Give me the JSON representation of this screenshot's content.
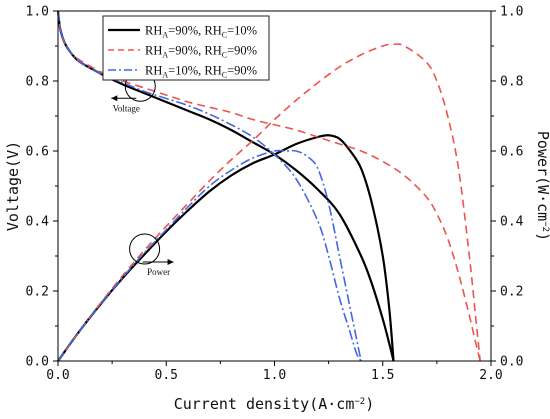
{
  "chart_data": {
    "type": "line",
    "xlabel": "Current density(A·cm⁻²)",
    "ylabel_left": "Voltage(V)",
    "ylabel_right": "Power(W·cm⁻²)",
    "xlim": [
      0,
      2.0
    ],
    "ylim_left": [
      0,
      1.0
    ],
    "ylim_right": [
      0,
      1.0
    ],
    "x_ticks": [
      "0.0",
      "0.5",
      "1.0",
      "1.5",
      "2.0"
    ],
    "y_left_ticks": [
      "0.0",
      "0.2",
      "0.4",
      "0.6",
      "0.8",
      "1.0"
    ],
    "y_right_ticks": [
      "0.0",
      "0.2",
      "0.4",
      "0.6",
      "0.8",
      "1.0"
    ],
    "grid": false,
    "legend_position": "top-left",
    "series": [
      {
        "name": "RH_A=90%, RH_C=10%",
        "legend": {
          "a": "RH",
          "a_sub": "A",
          "a_val": "=90%, ",
          "c": "RH",
          "c_sub": "C",
          "c_val": "=10%"
        },
        "color": "#000000",
        "dash": "solid",
        "voltage": {
          "x": [
            0,
            0.01,
            0.03,
            0.06,
            0.1,
            0.2,
            0.3,
            0.4,
            0.5,
            0.6,
            0.7,
            0.8,
            0.9,
            1.0,
            1.1,
            1.2,
            1.3,
            1.4,
            1.45,
            1.5,
            1.53,
            1.55
          ],
          "y": [
            1.0,
            0.95,
            0.91,
            0.88,
            0.855,
            0.82,
            0.79,
            0.765,
            0.74,
            0.715,
            0.69,
            0.66,
            0.625,
            0.59,
            0.545,
            0.49,
            0.42,
            0.3,
            0.22,
            0.12,
            0.05,
            0.0
          ]
        },
        "power": {
          "x": [
            0,
            0.1,
            0.2,
            0.3,
            0.4,
            0.5,
            0.6,
            0.7,
            0.8,
            0.9,
            1.0,
            1.1,
            1.2,
            1.25,
            1.3,
            1.35,
            1.4,
            1.45,
            1.5,
            1.53,
            1.55
          ],
          "y": [
            0,
            0.086,
            0.165,
            0.238,
            0.305,
            0.37,
            0.43,
            0.485,
            0.53,
            0.565,
            0.59,
            0.62,
            0.64,
            0.645,
            0.635,
            0.6,
            0.55,
            0.45,
            0.3,
            0.15,
            0.0
          ]
        }
      },
      {
        "name": "RH_A=90%, RH_C=90%",
        "legend": {
          "a": "RH",
          "a_sub": "A",
          "a_val": "=90%, ",
          "c": "RH",
          "c_sub": "C",
          "c_val": "=90%"
        },
        "color": "#ef5350",
        "dash": "8,5",
        "voltage": {
          "x": [
            0,
            0.01,
            0.03,
            0.06,
            0.1,
            0.2,
            0.3,
            0.4,
            0.5,
            0.6,
            0.7,
            0.8,
            0.9,
            1.0,
            1.1,
            1.2,
            1.3,
            1.4,
            1.5,
            1.6,
            1.7,
            1.75,
            1.8,
            1.85,
            1.9,
            1.93,
            1.95
          ],
          "y": [
            1.0,
            0.95,
            0.91,
            0.88,
            0.86,
            0.825,
            0.8,
            0.78,
            0.76,
            0.74,
            0.725,
            0.71,
            0.69,
            0.675,
            0.66,
            0.64,
            0.62,
            0.6,
            0.57,
            0.53,
            0.47,
            0.42,
            0.35,
            0.25,
            0.13,
            0.05,
            0.0
          ]
        },
        "power": {
          "x": [
            0,
            0.1,
            0.2,
            0.3,
            0.4,
            0.5,
            0.6,
            0.7,
            0.8,
            0.9,
            1.0,
            1.1,
            1.2,
            1.3,
            1.4,
            1.5,
            1.55,
            1.6,
            1.7,
            1.75,
            1.8,
            1.85,
            1.9,
            1.93,
            1.95
          ],
          "y": [
            0,
            0.086,
            0.168,
            0.245,
            0.317,
            0.385,
            0.45,
            0.515,
            0.575,
            0.63,
            0.69,
            0.745,
            0.795,
            0.84,
            0.875,
            0.9,
            0.905,
            0.9,
            0.855,
            0.8,
            0.7,
            0.55,
            0.3,
            0.12,
            0.0
          ]
        }
      },
      {
        "name": "RH_A=10%, RH_C=90%",
        "legend": {
          "a": "RH",
          "a_sub": "A",
          "a_val": "=10%, ",
          "c": "RH",
          "c_sub": "C",
          "c_val": "=90%"
        },
        "color": "#4169e1",
        "dash": "10,3,2,3",
        "voltage": {
          "x": [
            0,
            0.01,
            0.03,
            0.06,
            0.1,
            0.2,
            0.3,
            0.4,
            0.5,
            0.6,
            0.7,
            0.8,
            0.9,
            1.0,
            1.1,
            1.2,
            1.25,
            1.3,
            1.35,
            1.38,
            1.4
          ],
          "y": [
            1.0,
            0.95,
            0.91,
            0.88,
            0.855,
            0.82,
            0.795,
            0.77,
            0.75,
            0.73,
            0.705,
            0.675,
            0.64,
            0.59,
            0.52,
            0.4,
            0.3,
            0.18,
            0.08,
            0.02,
            0.0
          ]
        },
        "power": {
          "x": [
            0,
            0.1,
            0.2,
            0.3,
            0.4,
            0.5,
            0.6,
            0.7,
            0.8,
            0.9,
            1.0,
            1.05,
            1.1,
            1.15,
            1.2,
            1.25,
            1.3,
            1.35,
            1.38,
            1.4
          ],
          "y": [
            0,
            0.086,
            0.165,
            0.24,
            0.31,
            0.375,
            0.44,
            0.5,
            0.545,
            0.58,
            0.6,
            0.6,
            0.6,
            0.585,
            0.55,
            0.45,
            0.3,
            0.15,
            0.06,
            0.0
          ]
        }
      }
    ],
    "annotations": [
      {
        "text": "Voltage",
        "circle_at": [
          0.38,
          0.785
        ],
        "arrow": "left"
      },
      {
        "text": "Power",
        "circle_at": [
          0.4,
          0.32
        ],
        "arrow": "right"
      }
    ]
  }
}
